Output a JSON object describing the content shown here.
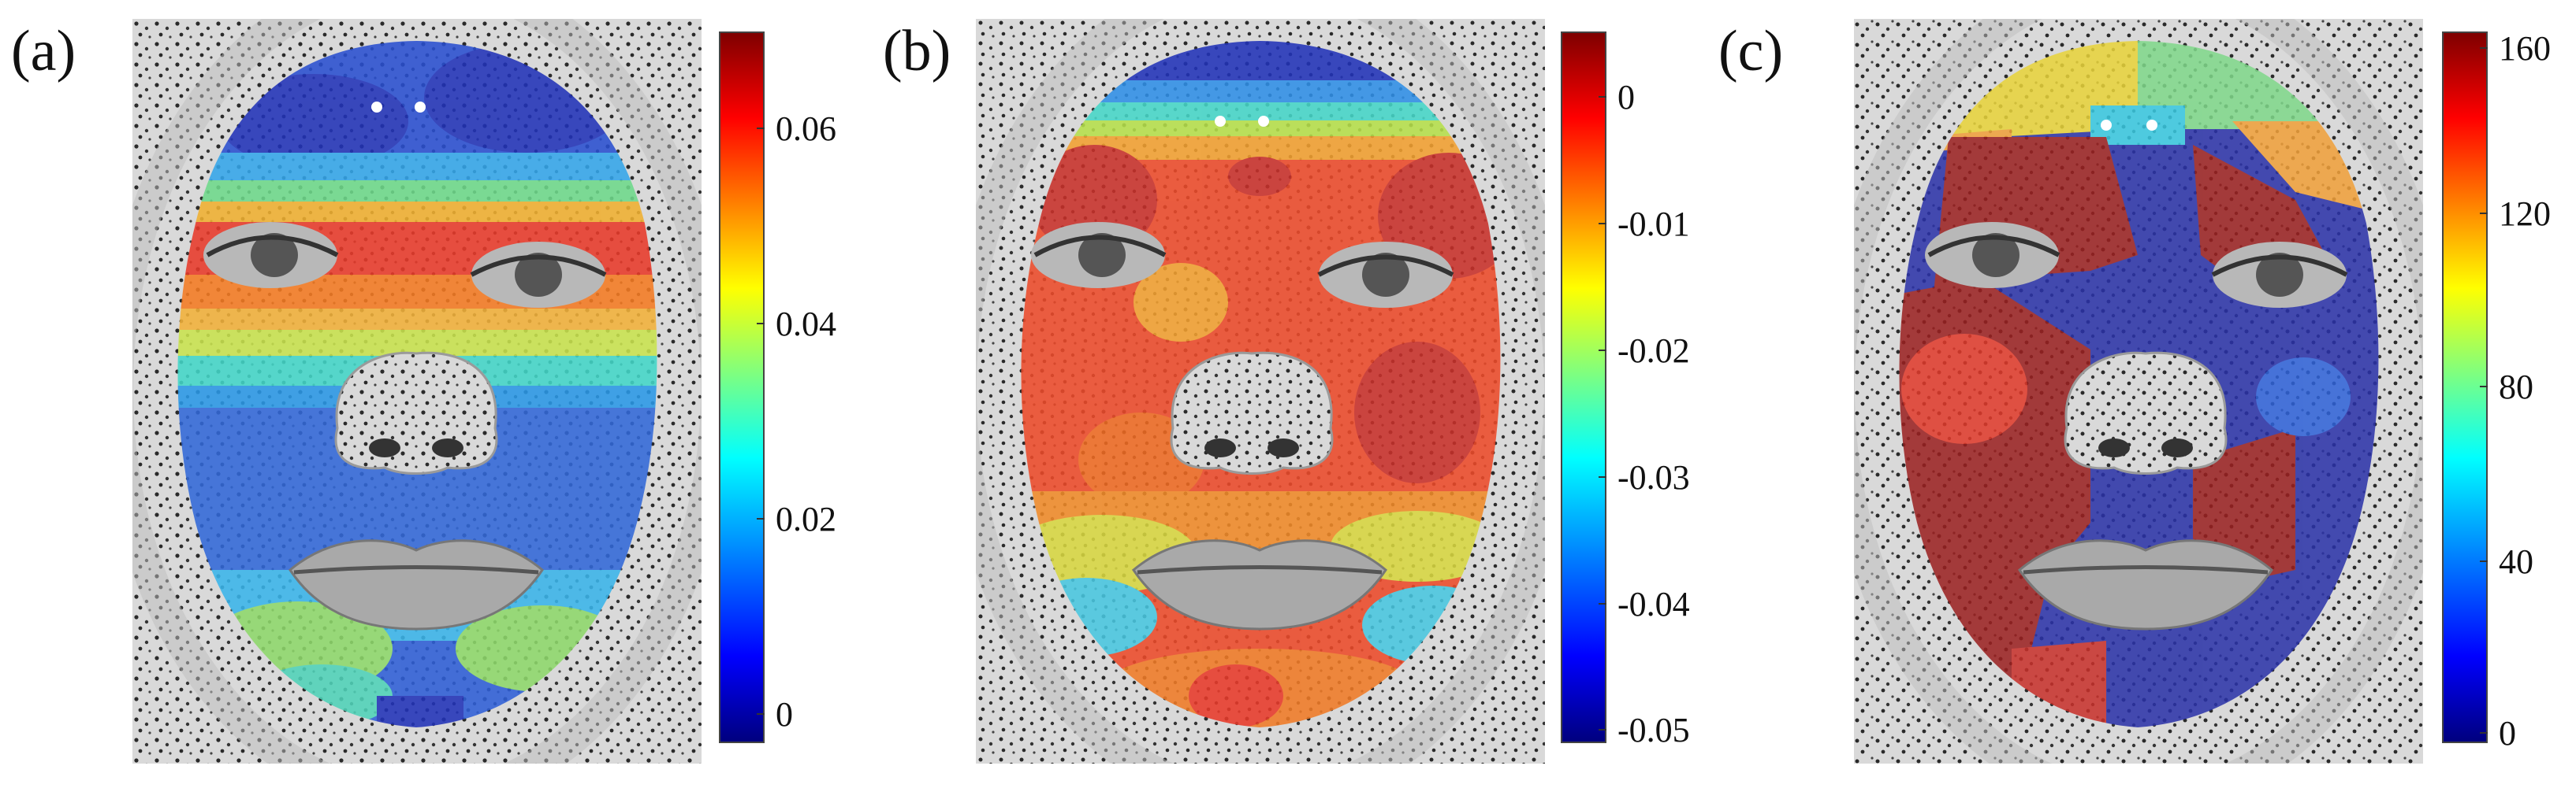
{
  "figure": {
    "panels": [
      {
        "label": "(a)",
        "colorbar_ticks": [
          "0.06",
          "0.04",
          "0.02",
          "0"
        ],
        "colorbar_tick_values": [
          0.06,
          0.04,
          0.02,
          0.0
        ],
        "colorbar_range": [
          -0.002,
          0.071
        ]
      },
      {
        "label": "(b)",
        "colorbar_ticks": [
          "0",
          "-0.01",
          "-0.02",
          "-0.03",
          "-0.04",
          "-0.05"
        ],
        "colorbar_tick_values": [
          0,
          -0.01,
          -0.02,
          -0.03,
          -0.04,
          -0.05
        ],
        "colorbar_range": [
          -0.051,
          0.005
        ]
      },
      {
        "label": "(c)",
        "colorbar_ticks": [
          "160",
          "120",
          "80",
          "40",
          "0"
        ],
        "colorbar_tick_values": [
          160,
          120,
          80,
          40,
          0
        ],
        "colorbar_range": [
          0,
          160
        ]
      }
    ],
    "colormap": [
      "#00007f",
      "#0000ff",
      "#007fff",
      "#00ffff",
      "#7fff7f",
      "#ffff00",
      "#ff7f00",
      "#ff0000",
      "#7f0000"
    ]
  }
}
